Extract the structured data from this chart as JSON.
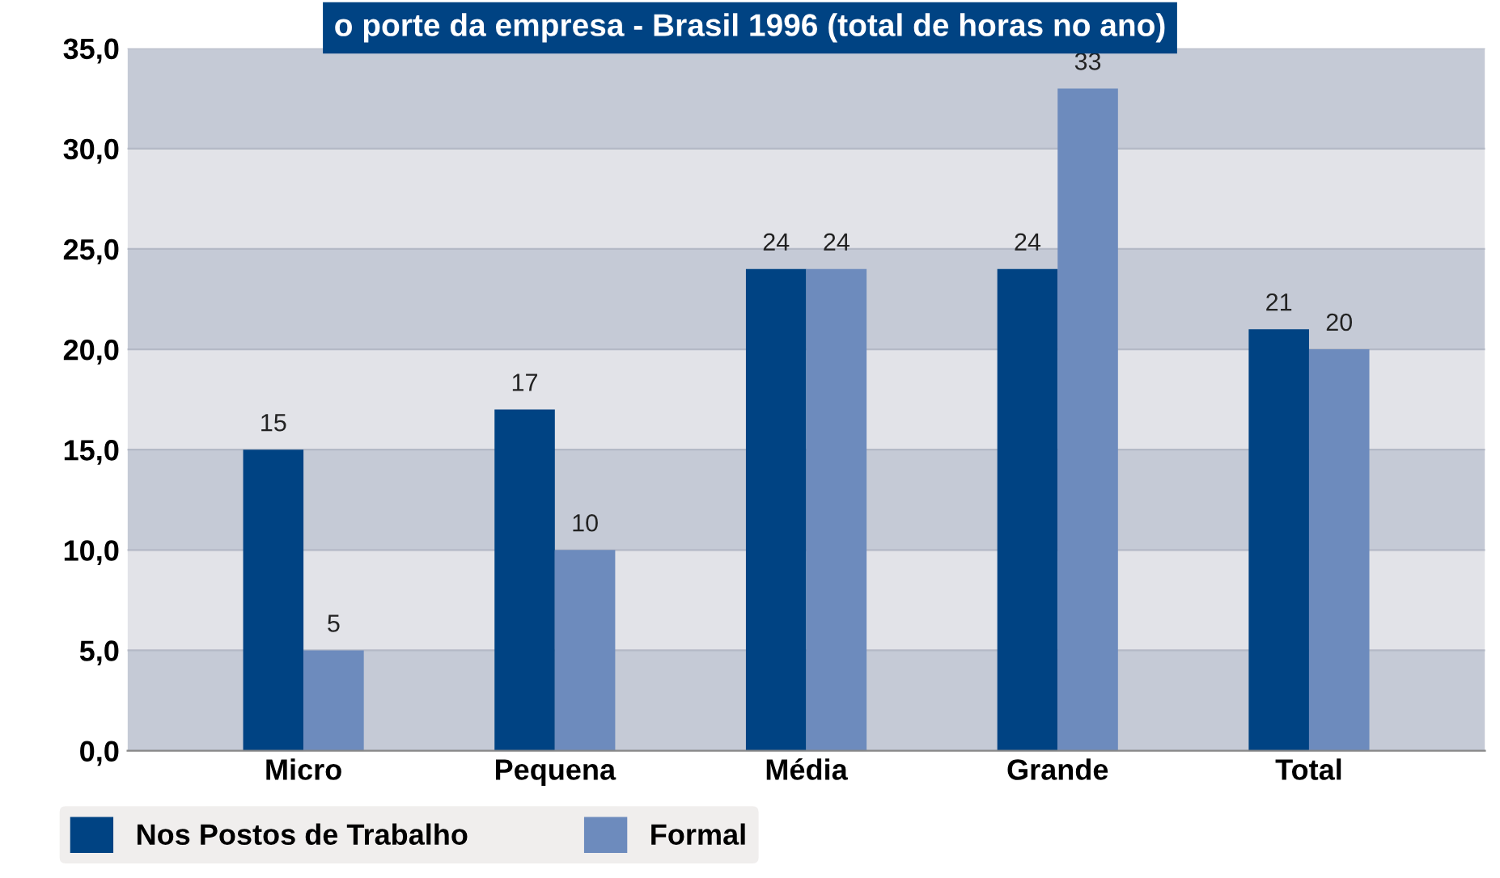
{
  "chart_data": {
    "type": "bar",
    "title": "o porte da empresa - Brasil 1996 (total de horas no ano)",
    "categories": [
      "Micro",
      "Pequena",
      "Média",
      "Grande",
      "Total"
    ],
    "series": [
      {
        "name": "Nos Postos de Trabalho",
        "color": "#004383",
        "values": [
          15,
          17,
          24,
          24,
          21
        ]
      },
      {
        "name": "Formal",
        "color": "#6d8bbd",
        "values": [
          5,
          10,
          24,
          33,
          20
        ]
      }
    ],
    "ylim": [
      0,
      35
    ],
    "yticks": [
      {
        "value": 0,
        "label": "0,0"
      },
      {
        "value": 5,
        "label": "5,0"
      },
      {
        "value": 10,
        "label": "10,0"
      },
      {
        "value": 15,
        "label": "15,0"
      },
      {
        "value": 20,
        "label": "20,0"
      },
      {
        "value": 25,
        "label": "25,0"
      },
      {
        "value": 30,
        "label": "30,0"
      },
      {
        "value": 35,
        "label": "35,0"
      }
    ],
    "grid": "y",
    "data_labels": true,
    "legend": "bottom left"
  }
}
